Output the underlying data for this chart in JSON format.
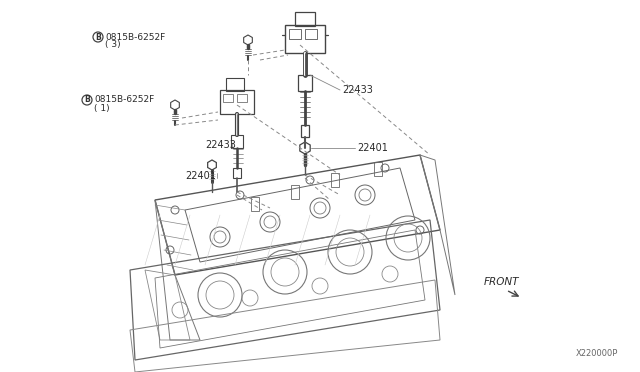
{
  "bg_color": "#ffffff",
  "line_color": "#555555",
  "dark_color": "#333333",
  "gray_color": "#888888",
  "text_color": "#2a2a2a",
  "part_number": "X220000P",
  "front_text": "FRONT",
  "bolt_top_label": "0815B-6252F",
  "bolt_top_qty": "( 3)",
  "bolt_mid_label": "0815B-6252F",
  "bolt_mid_qty": "( 1)",
  "label_22433": "22433",
  "label_22401": "22401",
  "fs_small": 6.0,
  "fs_label": 7.0,
  "fs_part": 6.5,
  "fs_front": 7.5
}
